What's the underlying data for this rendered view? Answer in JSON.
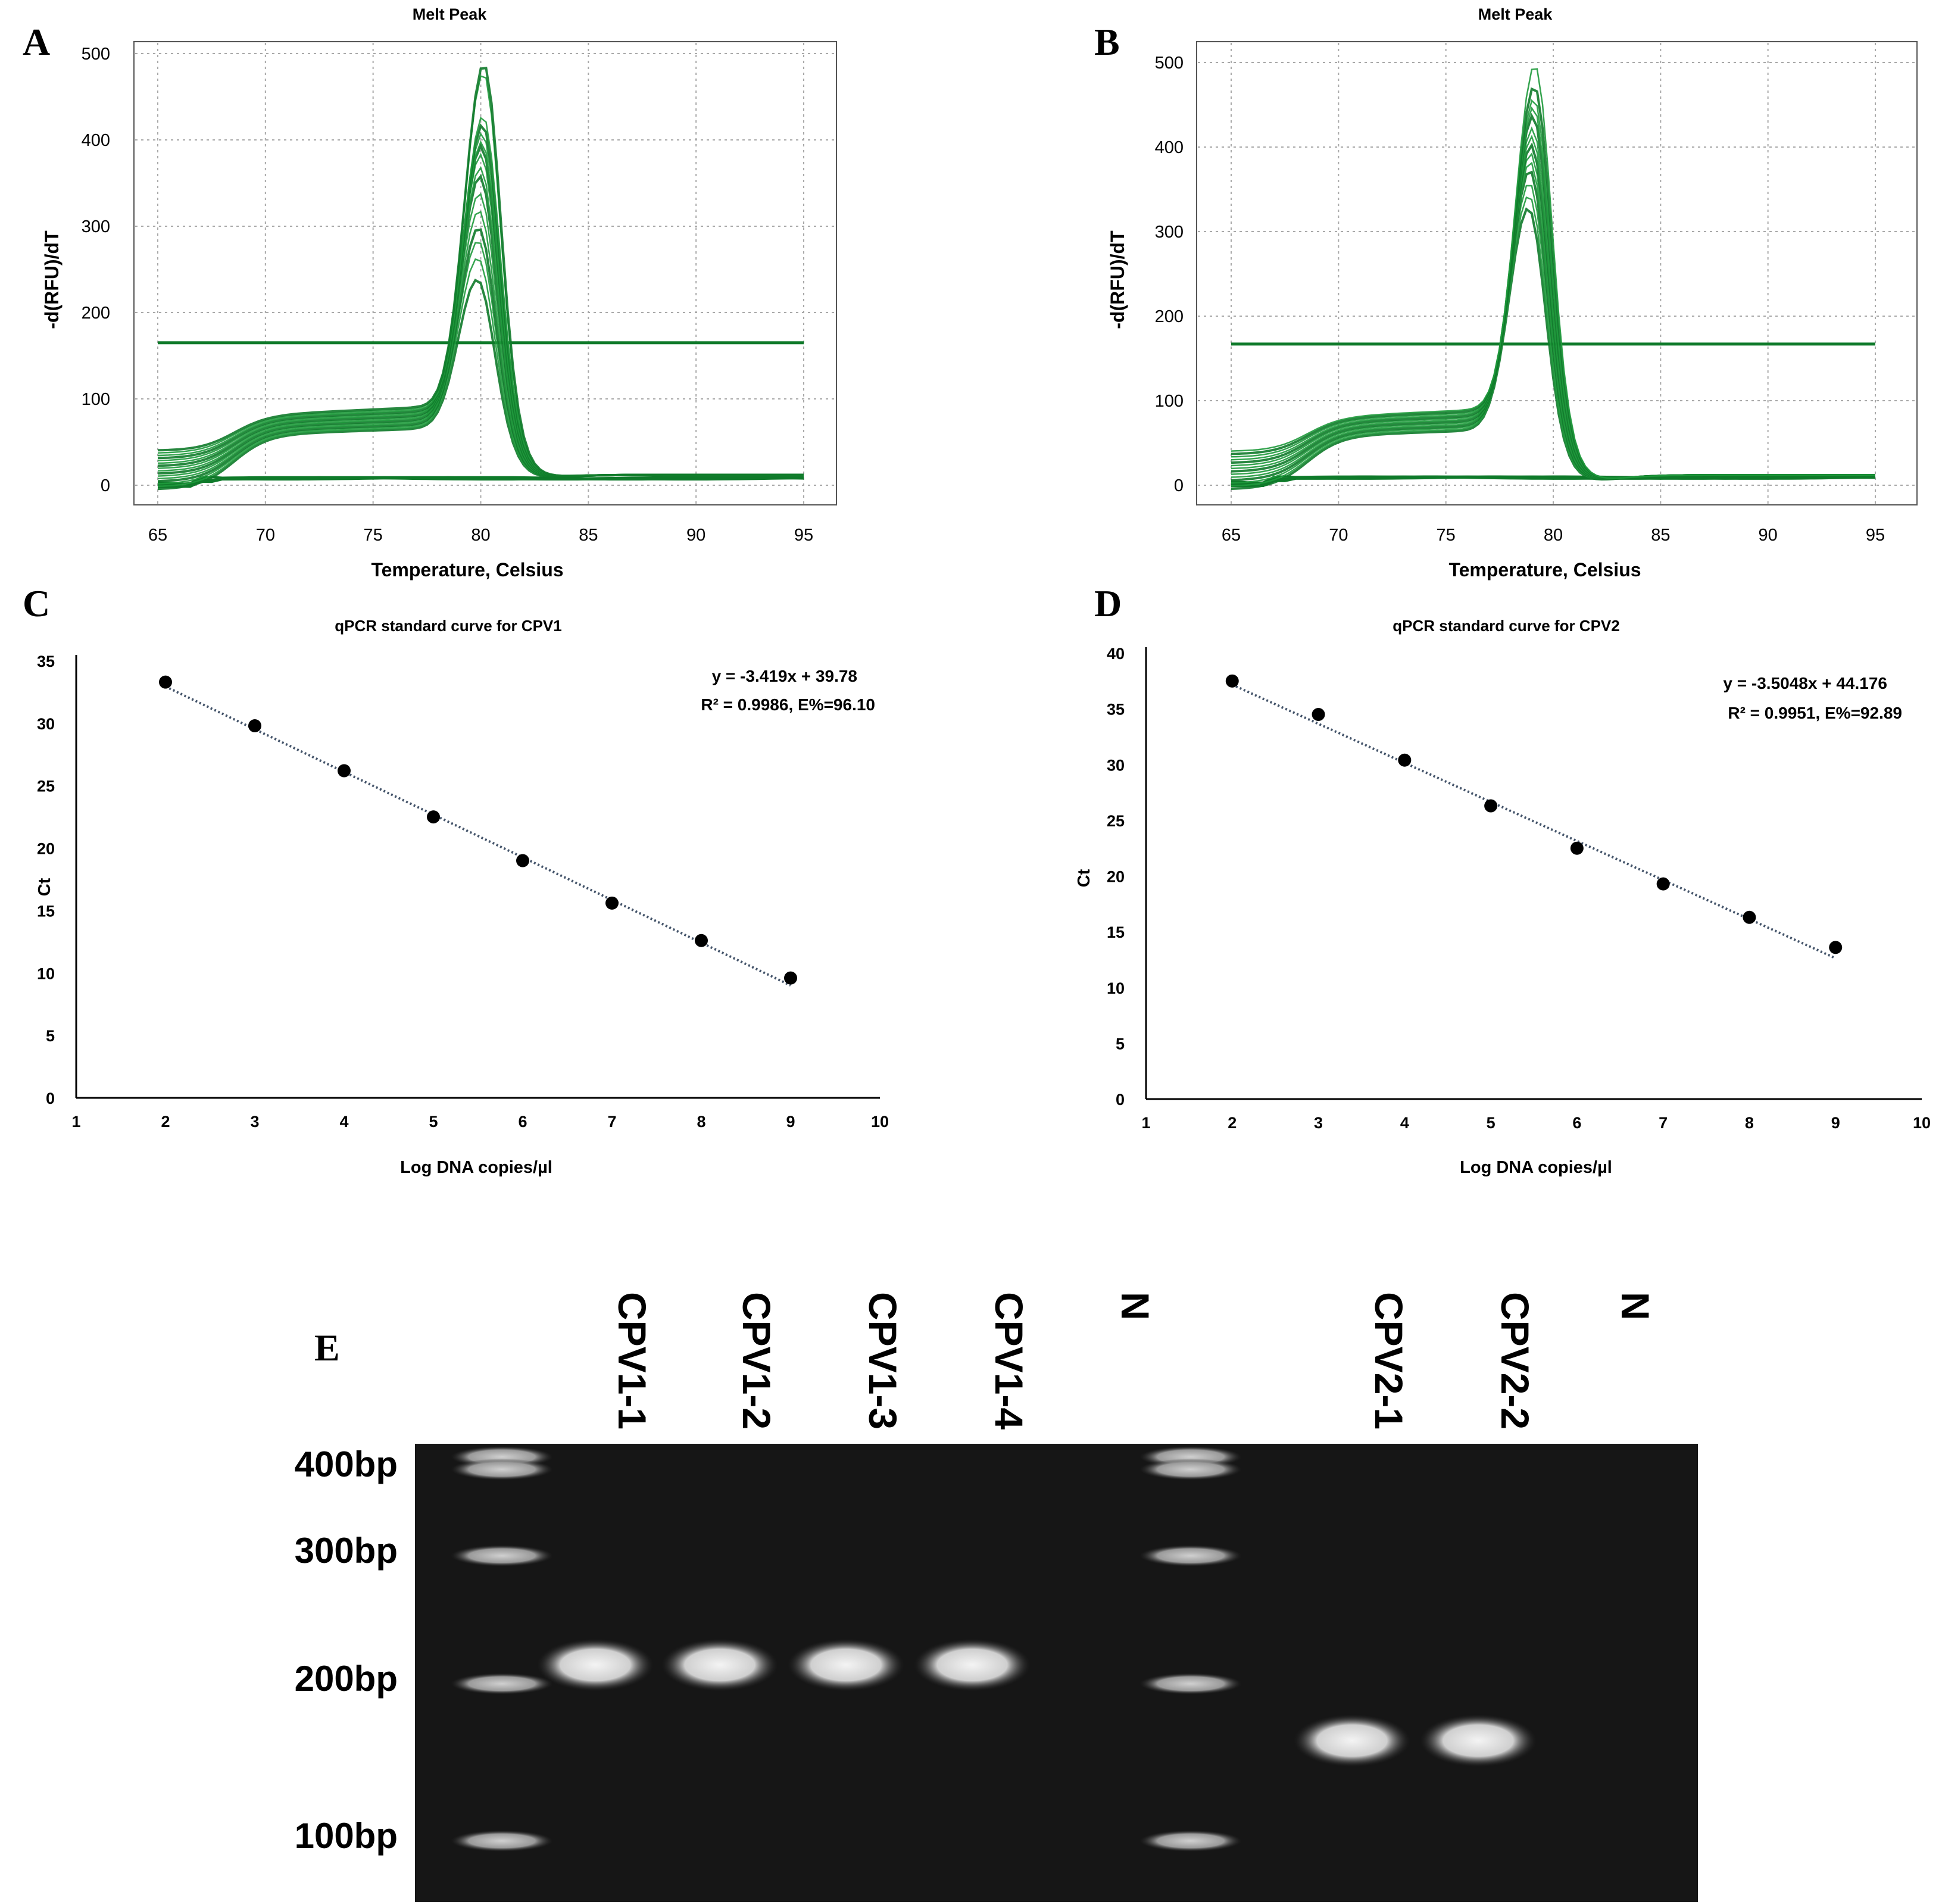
{
  "panels": {
    "A": "A",
    "B": "B",
    "C": "C",
    "D": "D",
    "E": "E"
  },
  "colors": {
    "melt_curve": "#1f9a3c",
    "melt_curve_dark": "#0f7a2a",
    "grid": "#a9a9a9",
    "point": "#000000",
    "trend": "#44546a",
    "gel_background": "#161616",
    "band": "#e8e8e8"
  },
  "chart_data": [
    {
      "panel": "A",
      "type": "line",
      "title": "Melt Peak",
      "xlabel": "Temperature, Celsius",
      "ylabel": "-d(RFU)/dT",
      "xlim": [
        65,
        95
      ],
      "ylim": [
        0,
        500
      ],
      "xticks": [
        65,
        70,
        75,
        80,
        85,
        90,
        95
      ],
      "yticks": [
        0,
        100,
        200,
        300,
        400,
        500
      ],
      "grid": true,
      "threshold": 165,
      "peak_temperature": 80,
      "peak_heights": [
        240,
        265,
        285,
        300,
        320,
        340,
        360,
        370,
        385,
        395,
        400,
        410,
        420,
        430,
        480,
        490
      ],
      "negative_baseline": 8
    },
    {
      "panel": "B",
      "type": "line",
      "title": "Melt Peak",
      "xlabel": "Temperature, Celsius",
      "ylabel": "-d(RFU)/dT",
      "xlim": [
        65,
        95
      ],
      "ylim": [
        0,
        500
      ],
      "xticks": [
        65,
        70,
        75,
        80,
        85,
        90,
        95
      ],
      "yticks": [
        0,
        100,
        200,
        300,
        400,
        500
      ],
      "grid": true,
      "threshold": 167,
      "peak_temperature": 79,
      "peak_heights": [
        330,
        345,
        360,
        375,
        385,
        395,
        405,
        415,
        425,
        440,
        450,
        460,
        475,
        500
      ],
      "negative_baseline": 9
    },
    {
      "panel": "C",
      "type": "scatter",
      "title": "qPCR standard curve for CPV1",
      "xlabel": "Log DNA copies/µl",
      "ylabel": "Ct",
      "xlim": [
        1,
        10
      ],
      "ylim": [
        0,
        35
      ],
      "xticks": [
        1,
        2,
        3,
        4,
        5,
        6,
        7,
        8,
        9,
        10
      ],
      "yticks": [
        0,
        5,
        10,
        15,
        20,
        25,
        30,
        35
      ],
      "grid": false,
      "x": [
        2,
        3,
        4,
        5,
        6,
        7,
        8,
        9
      ],
      "y": [
        33.3,
        29.8,
        26.2,
        22.5,
        19.0,
        15.6,
        12.6,
        9.6
      ],
      "trendline": {
        "slope": -3.419,
        "intercept": 39.78
      },
      "equation": "y = -3.419x + 39.78",
      "r2_label": "R² = 0.9986, E%=96.10"
    },
    {
      "panel": "D",
      "type": "scatter",
      "title": "qPCR standard curve for CPV2",
      "xlabel": "Log DNA copies/µl",
      "ylabel": "Ct",
      "xlim": [
        1,
        10
      ],
      "ylim": [
        0,
        40
      ],
      "xticks": [
        1,
        2,
        3,
        4,
        5,
        6,
        7,
        8,
        9,
        10
      ],
      "yticks": [
        0,
        5,
        10,
        15,
        20,
        25,
        30,
        35,
        40
      ],
      "grid": false,
      "x": [
        2,
        3,
        4,
        5,
        6,
        7,
        8,
        9
      ],
      "y": [
        37.5,
        34.5,
        30.4,
        26.3,
        22.5,
        19.3,
        16.3,
        13.6
      ],
      "trendline": {
        "slope": -3.5048,
        "intercept": 44.176
      },
      "equation": "y = -3.5048x + 44.176",
      "r2_label": "R² = 0.9951, E%=92.89"
    }
  ],
  "gel": {
    "lanes": [
      "CPV1-1",
      "CPV1-2",
      "CPV1-3",
      "CPV1-4",
      "N",
      "CPV2-1",
      "CPV2-2",
      "N"
    ],
    "size_markers": [
      "400bp",
      "300bp",
      "200bp",
      "100bp"
    ],
    "ladder_bp": [
      400,
      300,
      200,
      100
    ],
    "band_sizes_bp": [
      210,
      210,
      210,
      210,
      null,
      160,
      160,
      null
    ]
  }
}
